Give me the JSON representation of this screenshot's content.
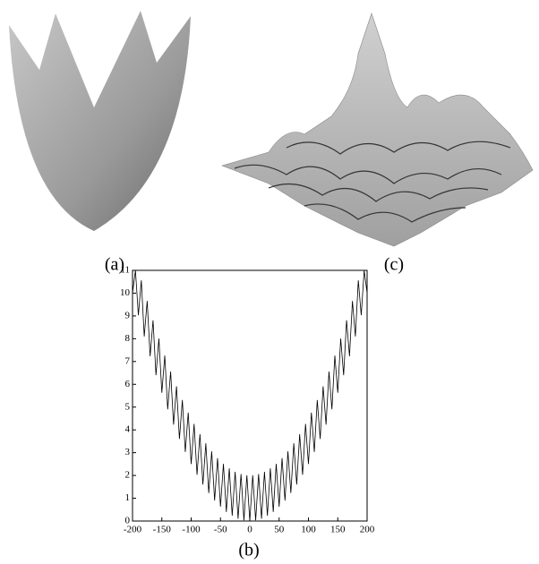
{
  "chart_data": [
    {
      "type": "surface",
      "label": "(a)"
    },
    {
      "type": "surface",
      "label": "(c)"
    },
    {
      "type": "line",
      "label": "(b)",
      "color": "#000000",
      "x": [
        -200,
        -195,
        -190,
        -185,
        -180,
        -175,
        -170,
        -165,
        -160,
        -155,
        -150,
        -145,
        -140,
        -135,
        -130,
        -125,
        -120,
        -115,
        -110,
        -105,
        -100,
        -95,
        -90,
        -85,
        -80,
        -75,
        -70,
        -65,
        -60,
        -55,
        -50,
        -45,
        -40,
        -35,
        -30,
        -25,
        -20,
        -15,
        -10,
        -5,
        0,
        5,
        10,
        15,
        20,
        25,
        30,
        35,
        40,
        45,
        50,
        55,
        60,
        65,
        70,
        75,
        80,
        85,
        90,
        95,
        100,
        105,
        110,
        115,
        120,
        125,
        130,
        135,
        140,
        145,
        150,
        155,
        160,
        165,
        170,
        175,
        180,
        185,
        190,
        195,
        200
      ],
      "values": [
        10,
        11,
        9.03,
        10.56,
        8.1,
        9.66,
        7.23,
        8.81,
        6.4,
        8.01,
        5.63,
        7.26,
        4.9,
        6.56,
        4.23,
        5.91,
        3.6,
        5.31,
        3.03,
        4.76,
        2.5,
        4.26,
        2.03,
        3.81,
        1.6,
        3.41,
        1.23,
        3.06,
        0.9,
        2.76,
        0.63,
        2.51,
        0.4,
        2.31,
        0.23,
        2.16,
        0.1,
        2.06,
        0.03,
        2.01,
        0,
        2.01,
        0.03,
        2.06,
        0.1,
        2.16,
        0.23,
        2.31,
        0.4,
        2.51,
        0.63,
        2.76,
        0.9,
        3.06,
        1.23,
        3.41,
        1.6,
        3.81,
        2.03,
        4.26,
        2.5,
        4.76,
        3.03,
        5.31,
        3.6,
        5.91,
        4.23,
        6.56,
        4.9,
        7.26,
        5.63,
        8.01,
        6.4,
        8.81,
        7.23,
        9.66,
        8.1,
        10.56,
        9.03,
        11,
        10
      ],
      "xlim": [
        -200,
        200
      ],
      "ylim": [
        0,
        11
      ],
      "xticks": [
        -200,
        -150,
        -100,
        -50,
        0,
        50,
        100,
        150,
        200
      ],
      "yticks": [
        0,
        1,
        2,
        3,
        4,
        5,
        6,
        7,
        8,
        9,
        10,
        11
      ]
    }
  ]
}
